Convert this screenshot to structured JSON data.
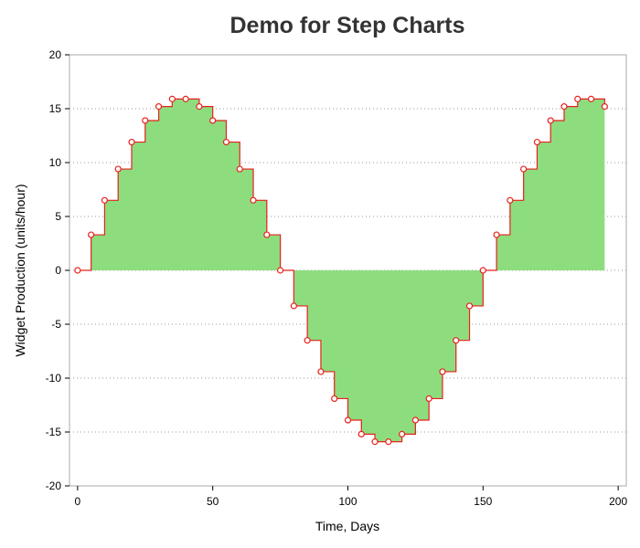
{
  "chart_data": {
    "type": "area",
    "style": "step",
    "title": "Demo for Step Charts",
    "xlabel": "Time, Days",
    "ylabel": "Widget Production (units/hour)",
    "xlim": [
      -3,
      203
    ],
    "ylim": [
      -20,
      20
    ],
    "xticks": [
      0,
      50,
      100,
      150,
      200
    ],
    "yticks": [
      -20,
      -15,
      -10,
      -5,
      0,
      5,
      10,
      15,
      20
    ],
    "grid": "horizontal dotted",
    "colors": {
      "fill": "#8ddd7f",
      "line": "#e8201c",
      "marker_fill": "#ffffff",
      "marker_stroke": "#e8201c",
      "grid": "#999999"
    },
    "x": [
      0,
      5,
      10,
      15,
      20,
      25,
      30,
      35,
      40,
      45,
      50,
      55,
      60,
      65,
      70,
      75,
      80,
      85,
      90,
      95,
      100,
      105,
      110,
      115,
      120,
      125,
      130,
      135,
      140,
      145,
      150,
      155,
      160,
      165,
      170,
      175,
      180,
      185,
      190,
      195
    ],
    "y": [
      0,
      3.3,
      6.5,
      9.4,
      11.9,
      13.9,
      15.2,
      15.9,
      15.9,
      15.2,
      13.9,
      11.9,
      9.4,
      6.5,
      3.3,
      0,
      -3.3,
      -6.5,
      -9.4,
      -11.9,
      -13.9,
      -15.2,
      -15.9,
      -15.9,
      -15.2,
      -13.9,
      -11.9,
      -9.4,
      -6.5,
      -3.3,
      0,
      3.3,
      6.5,
      9.4,
      11.9,
      13.9,
      15.2,
      15.9,
      15.9,
      15.2
    ]
  }
}
